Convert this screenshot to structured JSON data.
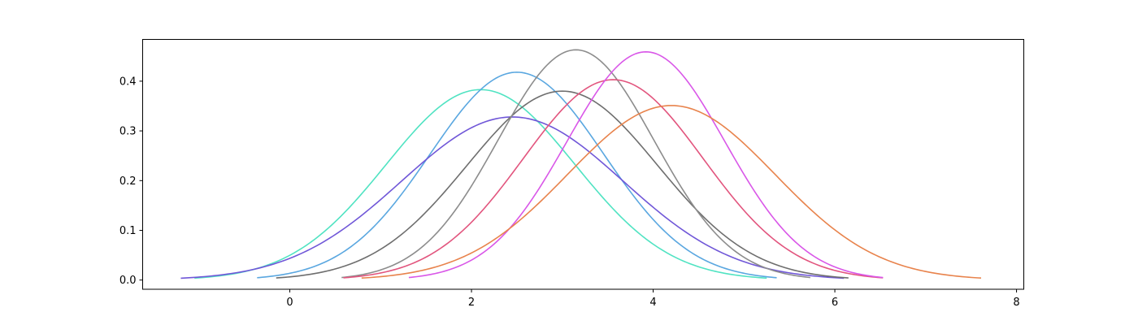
{
  "chart_data": {
    "type": "line",
    "title": "",
    "xlabel": "",
    "ylabel": "",
    "xlim": [
      -1.62,
      8.08
    ],
    "ylim": [
      -0.0185,
      0.484
    ],
    "grid": false,
    "legend": "none",
    "xticks": [
      {
        "value": 0,
        "label": "0"
      },
      {
        "value": 2,
        "label": "2"
      },
      {
        "value": 4,
        "label": "4"
      },
      {
        "value": 6,
        "label": "6"
      },
      {
        "value": 8,
        "label": "8"
      }
    ],
    "yticks": [
      {
        "value": 0.0,
        "label": "0.0"
      },
      {
        "value": 0.1,
        "label": "0.1"
      },
      {
        "value": 0.2,
        "label": "0.2"
      },
      {
        "value": 0.3,
        "label": "0.3"
      },
      {
        "value": 0.4,
        "label": "0.4"
      }
    ],
    "series": [
      {
        "color": "#50e3c2",
        "mean": 2.1,
        "sd": 1.04,
        "x_range": [
          -1.05,
          5.25
        ],
        "peak": 0.383
      },
      {
        "color": "#5aa7e0",
        "mean": 2.5,
        "sd": 0.955,
        "x_range": [
          -0.36,
          5.36
        ],
        "peak": 0.418
      },
      {
        "color": "#7057d8",
        "mean": 2.45,
        "sd": 1.22,
        "x_range": [
          -1.2,
          6.1
        ],
        "peak": 0.328
      },
      {
        "color": "#6e6e6e",
        "mean": 3.0,
        "sd": 1.05,
        "x_range": [
          -0.15,
          6.15
        ],
        "peak": 0.38
      },
      {
        "color": "#8c8c8c",
        "mean": 3.15,
        "sd": 0.86,
        "x_range": [
          0.57,
          5.73
        ],
        "peak": 0.463
      },
      {
        "color": "#e2557e",
        "mean": 3.56,
        "sd": 0.99,
        "x_range": [
          0.59,
          6.53
        ],
        "peak": 0.403
      },
      {
        "color": "#d957e8",
        "mean": 3.92,
        "sd": 0.87,
        "x_range": [
          1.31,
          6.53
        ],
        "peak": 0.459
      },
      {
        "color": "#e8834c",
        "mean": 4.2,
        "sd": 1.14,
        "x_range": [
          0.79,
          7.61
        ],
        "peak": 0.351
      }
    ]
  }
}
